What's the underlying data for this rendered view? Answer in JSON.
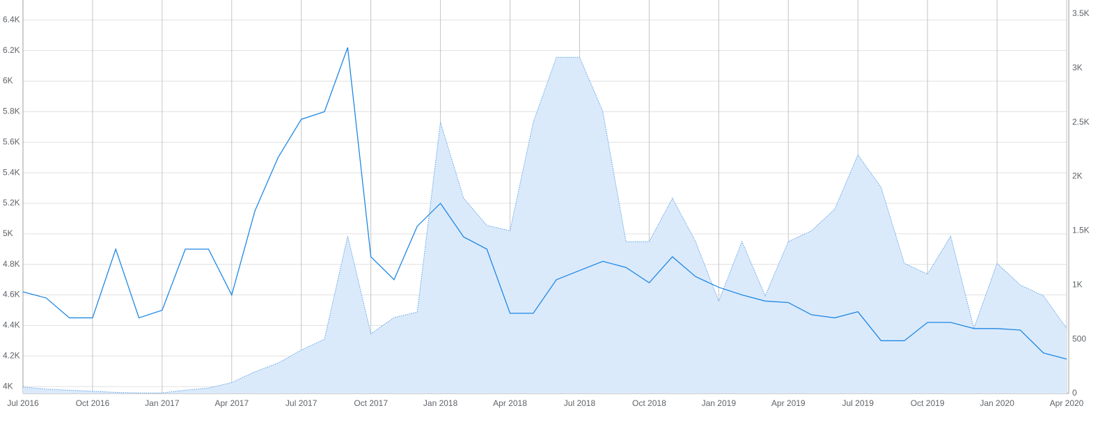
{
  "chart_data": {
    "type": "line",
    "x": [
      "2016-07",
      "2016-08",
      "2016-09",
      "2016-10",
      "2016-11",
      "2016-12",
      "2017-01",
      "2017-02",
      "2017-03",
      "2017-04",
      "2017-05",
      "2017-06",
      "2017-07",
      "2017-08",
      "2017-09",
      "2017-10",
      "2017-11",
      "2017-12",
      "2018-01",
      "2018-02",
      "2018-03",
      "2018-04",
      "2018-05",
      "2018-06",
      "2018-07",
      "2018-08",
      "2018-09",
      "2018-10",
      "2018-11",
      "2018-12",
      "2019-01",
      "2019-02",
      "2019-03",
      "2019-04",
      "2019-05",
      "2019-06",
      "2019-07",
      "2019-08",
      "2019-09",
      "2019-10",
      "2019-11",
      "2019-12",
      "2020-01",
      "2020-02",
      "2020-03",
      "2020-04"
    ],
    "series": [
      {
        "kind": "area",
        "axis": "y2",
        "color": "#5aa0e6",
        "fill": "#dbeafb",
        "values": [
          60,
          40,
          30,
          20,
          10,
          5,
          5,
          30,
          50,
          100,
          200,
          280,
          400,
          500,
          1450,
          550,
          700,
          750,
          2500,
          1800,
          1550,
          1500,
          2500,
          3100,
          3100,
          2600,
          1400,
          1400,
          1800,
          1400,
          850,
          1400,
          900,
          1400,
          1500,
          1700,
          2200,
          1900,
          1200,
          1100,
          1450,
          600,
          1200,
          1000,
          900,
          600
        ]
      },
      {
        "kind": "line",
        "axis": "y",
        "color": "#1e88e5",
        "values": [
          4620,
          4580,
          4450,
          4450,
          4900,
          4450,
          4500,
          4900,
          4900,
          4600,
          5150,
          5500,
          5750,
          5800,
          6220,
          4850,
          4700,
          5050,
          5200,
          4980,
          4900,
          4480,
          4480,
          4700,
          4760,
          4820,
          4780,
          4680,
          4850,
          4720,
          4650,
          4600,
          4560,
          4550,
          4470,
          4450,
          4490,
          4300,
          4300,
          4420,
          4420,
          4380,
          4380,
          4370,
          4220,
          4180
        ]
      }
    ],
    "ylim": [
      3955,
      6440
    ],
    "yticks": [
      {
        "value": 4000,
        "label": "4K"
      },
      {
        "value": 4200,
        "label": "4.2K"
      },
      {
        "value": 4400,
        "label": "4.4K"
      },
      {
        "value": 4600,
        "label": "4.6K"
      },
      {
        "value": 4800,
        "label": "4.8K"
      },
      {
        "value": 5000,
        "label": "5K"
      },
      {
        "value": 5200,
        "label": "5.2K"
      },
      {
        "value": 5400,
        "label": "5.4K"
      },
      {
        "value": 5600,
        "label": "5.6K"
      },
      {
        "value": 5800,
        "label": "5.8K"
      },
      {
        "value": 6000,
        "label": "6K"
      },
      {
        "value": 6200,
        "label": "6.2K"
      },
      {
        "value": 6400,
        "label": "6.4K"
      }
    ],
    "y2lim": [
      0,
      3500
    ],
    "y2ticks": [
      0,
      500,
      {
        "value": 1000,
        "label": "1K"
      },
      {
        "value": 1500,
        "label": "1.5K"
      },
      {
        "value": 2000,
        "label": "2K"
      },
      {
        "value": 2500,
        "label": "2.5K"
      },
      {
        "value": 3000,
        "label": "3K"
      },
      {
        "value": 3500,
        "label": "3.5K"
      }
    ],
    "xticks": [
      {
        "value": "2016-07",
        "label": "Jul 2016"
      },
      {
        "value": "2016-10",
        "label": "Oct 2016"
      },
      {
        "value": "2017-01",
        "label": "Jan 2017"
      },
      {
        "value": "2017-04",
        "label": "Apr 2017"
      },
      {
        "value": "2017-07",
        "label": "Jul 2017"
      },
      {
        "value": "2017-10",
        "label": "Oct 2017"
      },
      {
        "value": "2018-01",
        "label": "Jan 2018"
      },
      {
        "value": "2018-04",
        "label": "Apr 2018"
      },
      {
        "value": "2018-07",
        "label": "Jul 2018"
      },
      {
        "value": "2018-10",
        "label": "Oct 2018"
      },
      {
        "value": "2019-01",
        "label": "Jan 2019"
      },
      {
        "value": "2019-04",
        "label": "Apr 2019"
      },
      {
        "value": "2019-07",
        "label": "Jul 2019"
      },
      {
        "value": "2019-10",
        "label": "Oct 2019"
      },
      {
        "value": "2020-01",
        "label": "Jan 2020"
      },
      {
        "value": "2020-04",
        "label": "Apr 2020"
      }
    ],
    "grid": true
  }
}
